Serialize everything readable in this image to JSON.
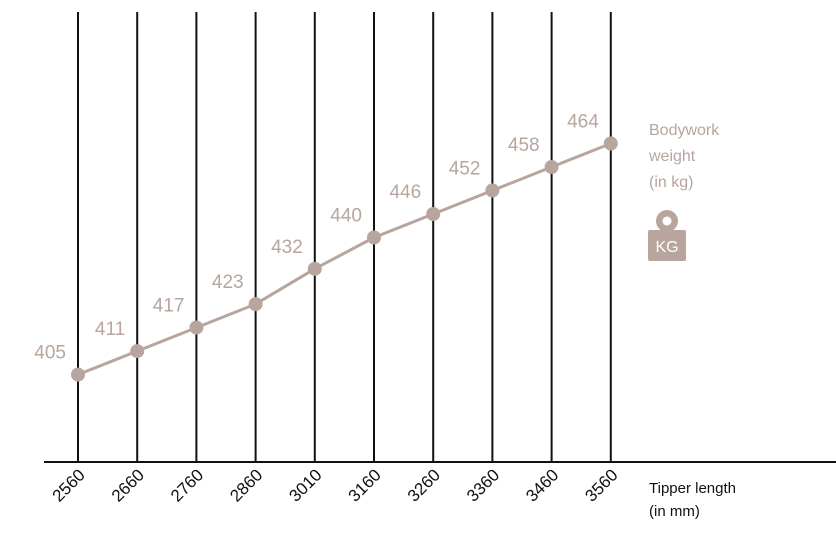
{
  "chart_data": {
    "type": "line",
    "title": "",
    "xlabel_lines": [
      "Tipper length",
      "(in mm)"
    ],
    "ylabel_lines": [
      "Bodywork",
      "weight",
      "(in kg)"
    ],
    "categories": [
      "2560",
      "2660",
      "2760",
      "2860",
      "3010",
      "3160",
      "3260",
      "3360",
      "3460",
      "3560"
    ],
    "series": [
      {
        "values": [
          405,
          411,
          417,
          423,
          432,
          440,
          446,
          452,
          458,
          464
        ]
      }
    ],
    "ylim": [
      398,
      470
    ],
    "grid": "vertical lines at each category",
    "legend": "none",
    "icon": {
      "name": "kg-weight-icon",
      "text": "KG"
    },
    "colors": {
      "line": "#b7a59e",
      "point": "#b7a59e",
      "label": "#b7a59e",
      "grid": "#111111",
      "axis": "#111111",
      "tick_text": "#111111",
      "icon": "#b7a59e"
    }
  }
}
